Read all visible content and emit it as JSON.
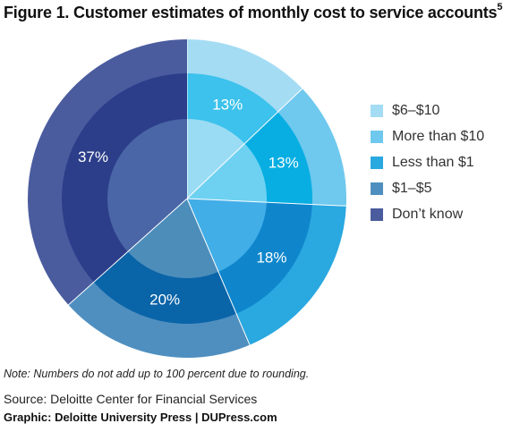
{
  "title": "Figure 1. Customer estimates of monthly cost to service accounts",
  "title_sup": "5",
  "note": "Note: Numbers do not add up to 100 percent due to rounding.",
  "source": "Source: Deloitte Center for Financial Services",
  "graphic": "Graphic: Deloitte University Press  |  DUPress.com",
  "chart_data": {
    "type": "pie",
    "style": "nested donut with lighter inner disc",
    "legend_position": "right",
    "start_angle_deg": 0,
    "direction": "clockwise",
    "categories": [
      "$6–$10",
      "More than $10",
      "Less than $1",
      "$1–$5",
      "Don’t know"
    ],
    "values": [
      13,
      13,
      18,
      20,
      37
    ],
    "data_labels": [
      "13%",
      "13%",
      "18%",
      "20%",
      "37%"
    ],
    "colors": {
      "outer": [
        "#a4dcf4",
        "#6fc8ee",
        "#2aa8e0",
        "#4f8fc0",
        "#4a5c9e"
      ],
      "middle": [
        "#3cc2ec",
        "#08aee2",
        "#0f86cc",
        "#0a64a8",
        "#2c3e8a"
      ],
      "inner": [
        "#9bdcf5",
        "#6ed1f2",
        "#42aee8",
        "#4c8dba",
        "#4a66a6"
      ]
    }
  }
}
